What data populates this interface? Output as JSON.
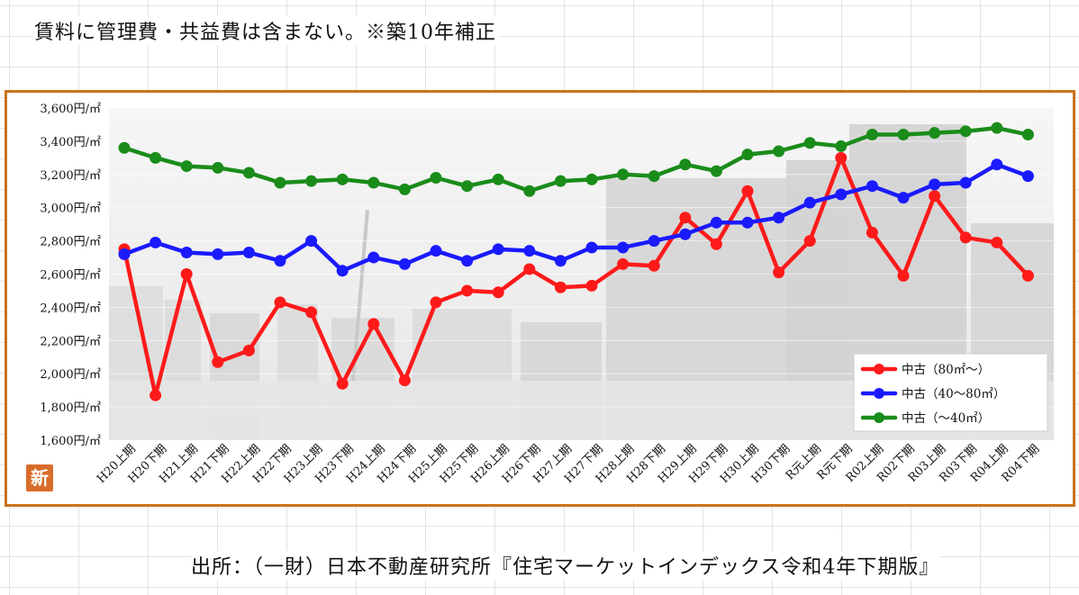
{
  "header": {
    "note": "賃料に管理費・共益費は含まない。※築10年補正"
  },
  "footer": {
    "source": "出所：（一財）日本不動産研究所『住宅マーケットインデックス令和4年下期版』"
  },
  "badge": {
    "label": "新"
  },
  "colors": {
    "frame": "#c9731f",
    "series_red": "#ff1a1a",
    "series_blue": "#1a1aff",
    "series_green": "#1a8c1a"
  },
  "chart_data": {
    "type": "line",
    "title": "",
    "xlabel": "",
    "ylabel": "",
    "ylim": [
      1600,
      3600
    ],
    "yticks": [
      {
        "v": 3600,
        "label": "3,600円/㎡"
      },
      {
        "v": 3400,
        "label": "3,400円/㎡"
      },
      {
        "v": 3200,
        "label": "3,200円/㎡"
      },
      {
        "v": 3000,
        "label": "3,000円/㎡"
      },
      {
        "v": 2800,
        "label": "2,800円/㎡"
      },
      {
        "v": 2600,
        "label": "2,600円/㎡"
      },
      {
        "v": 2400,
        "label": "2,400円/㎡"
      },
      {
        "v": 2200,
        "label": "2,200円/㎡"
      },
      {
        "v": 2000,
        "label": "2,000円/㎡"
      },
      {
        "v": 1800,
        "label": "1,800円/㎡"
      },
      {
        "v": 1600,
        "label": "1,600円/㎡"
      }
    ],
    "categories": [
      "H20上期",
      "H20下期",
      "H21上期",
      "H21下期",
      "H22上期",
      "H22下期",
      "H23上期",
      "H23下期",
      "H24上期",
      "H24下期",
      "H25上期",
      "H25下期",
      "H26上期",
      "H26下期",
      "H27上期",
      "H27下期",
      "H28上期",
      "H28下期",
      "H29上期",
      "H29下期",
      "H30上期",
      "H30下期",
      "R元上期",
      "R元下期",
      "R02上期",
      "R02下期",
      "R03上期",
      "R03下期",
      "R04上期",
      "R04下期"
    ],
    "legend_position": "bottom-right",
    "series": [
      {
        "name": "中古（80㎡～）",
        "color": "#ff1a1a",
        "values": [
          2750,
          1870,
          2600,
          2070,
          2140,
          2430,
          2370,
          1940,
          2300,
          1960,
          2430,
          2500,
          2490,
          2630,
          2520,
          2530,
          2660,
          2650,
          2940,
          2780,
          3100,
          2610,
          2800,
          3300,
          2850,
          2590,
          3070,
          2820,
          2790,
          2590
        ]
      },
      {
        "name": "中古（40～80㎡）",
        "color": "#1a1aff",
        "values": [
          2720,
          2790,
          2730,
          2720,
          2730,
          2680,
          2800,
          2620,
          2700,
          2660,
          2740,
          2680,
          2750,
          2740,
          2680,
          2760,
          2760,
          2800,
          2840,
          2910,
          2910,
          2940,
          3030,
          3080,
          3130,
          3060,
          3140,
          3150,
          3260,
          3190
        ]
      },
      {
        "name": "中古（～40㎡）",
        "color": "#1a8c1a",
        "values": [
          3360,
          3300,
          3250,
          3240,
          3210,
          3150,
          3160,
          3170,
          3150,
          3110,
          3180,
          3130,
          3170,
          3100,
          3160,
          3170,
          3200,
          3190,
          3260,
          3220,
          3320,
          3340,
          3390,
          3370,
          3440,
          3440,
          3450,
          3460,
          3480,
          3440
        ]
      }
    ]
  }
}
